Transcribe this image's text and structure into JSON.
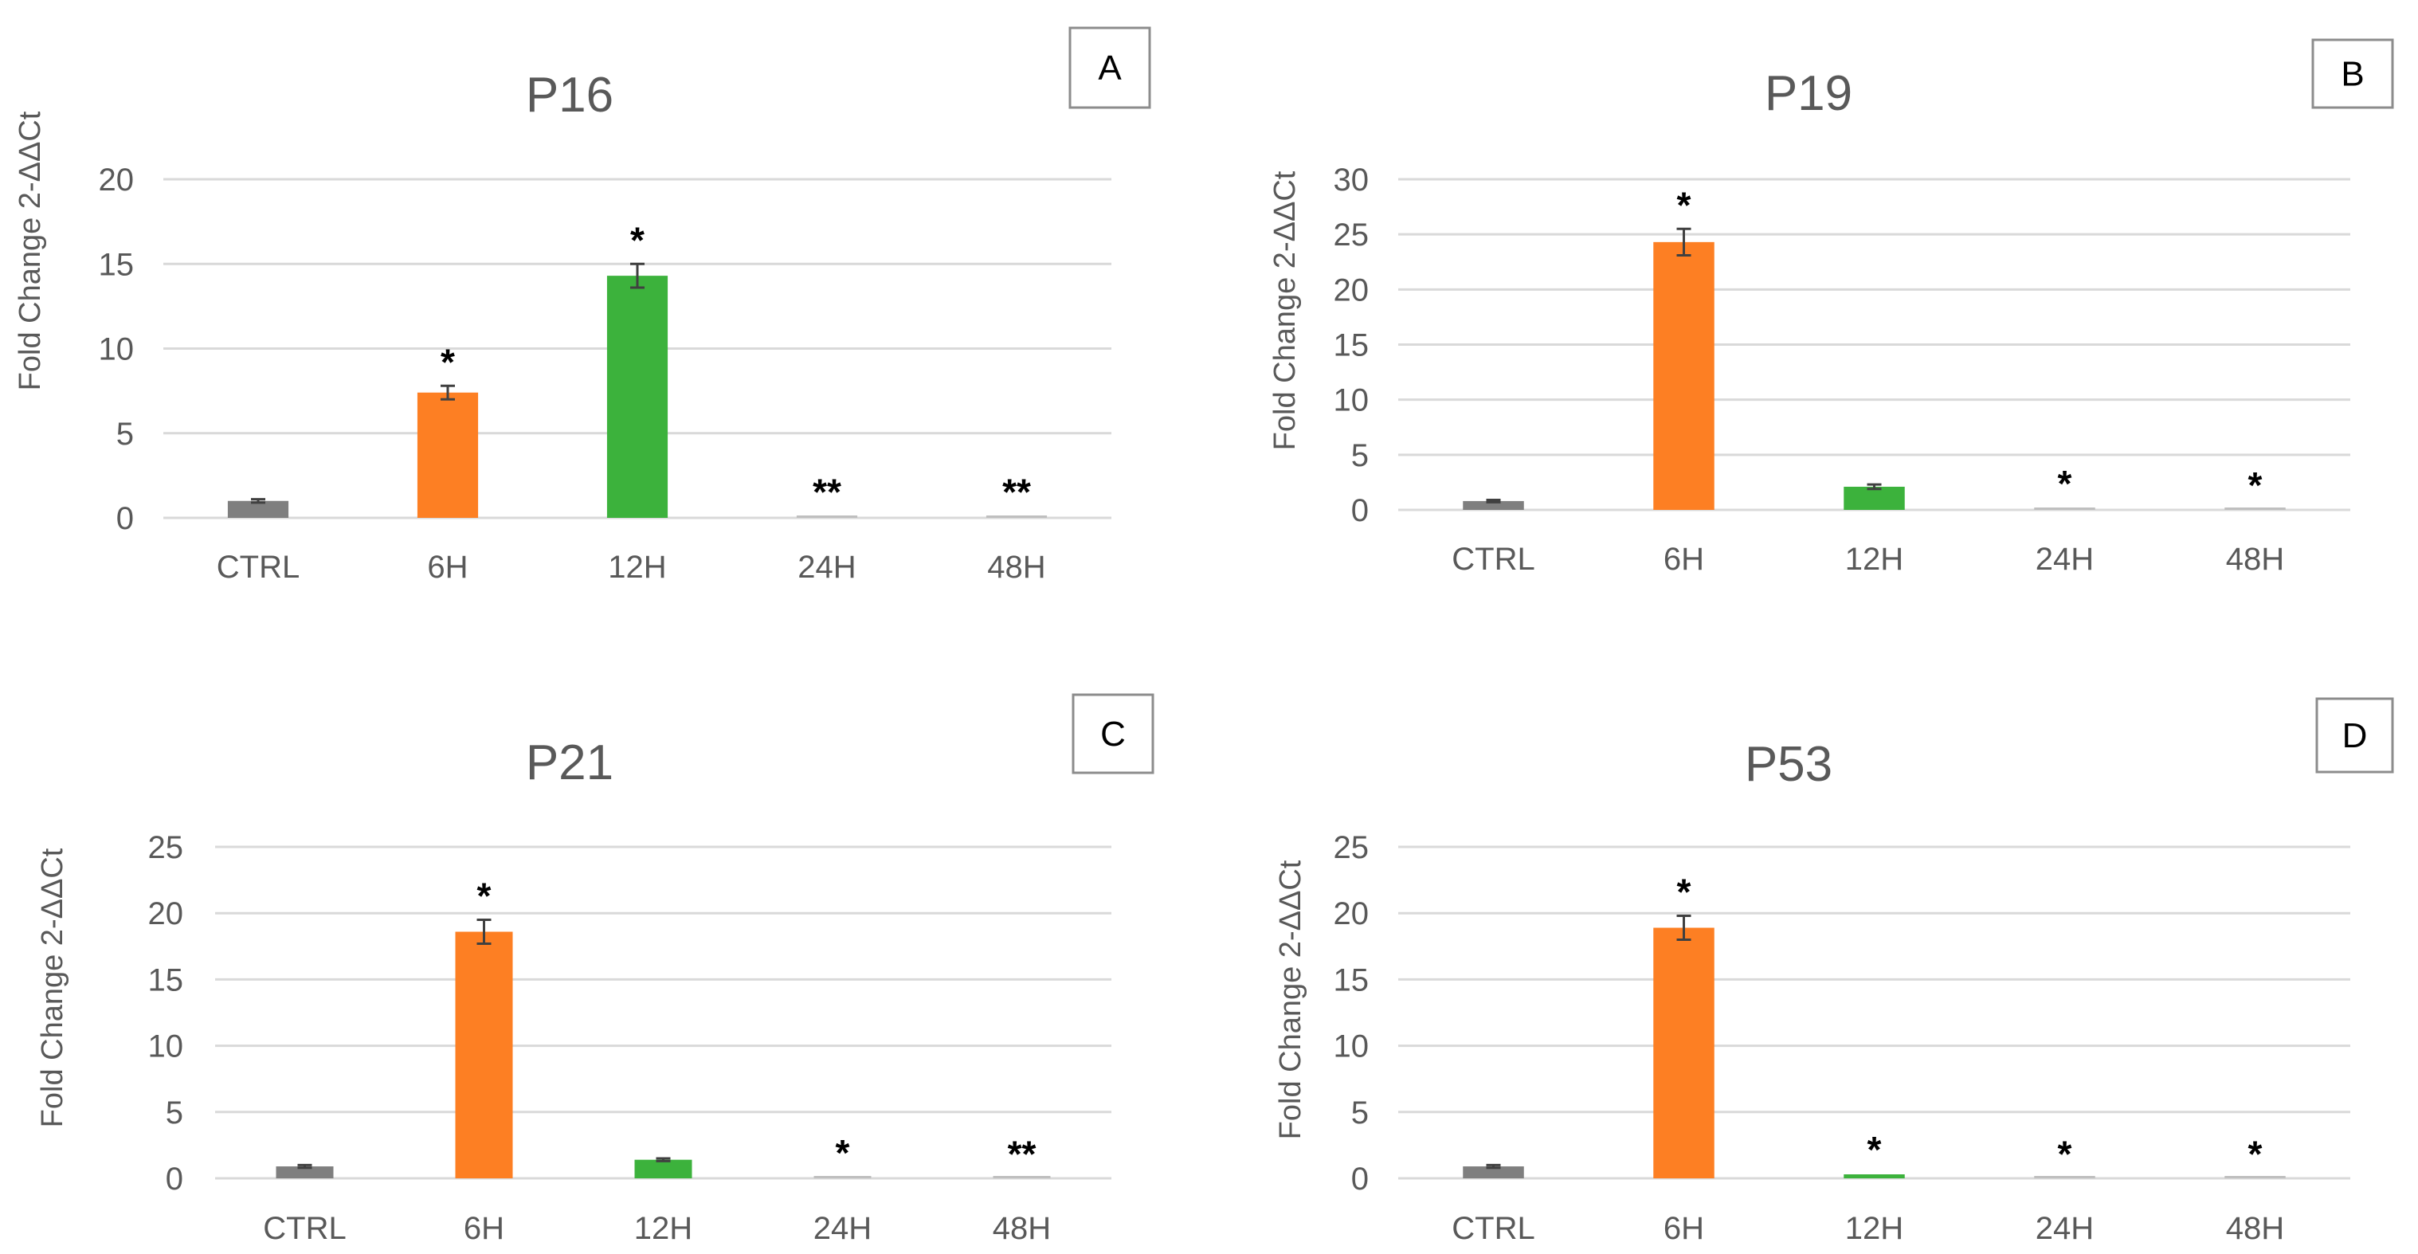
{
  "colors": {
    "ctrl": "#7f7f7f",
    "h6": "#fd7f23",
    "h12": "#3cb23c",
    "late": "#bfbfbf"
  },
  "chart_data": [
    {
      "type": "bar",
      "title": "P16",
      "panel_label": "A",
      "ylabel": "Fold Change 2-ΔΔCt",
      "xlabel": "",
      "categories": [
        "CTRL",
        "6H",
        "12H",
        "24H",
        "48H"
      ],
      "values": [
        1.0,
        7.4,
        14.3,
        0.1,
        0.1
      ],
      "errors": [
        0.1,
        0.4,
        0.7,
        0.02,
        0.02
      ],
      "significance": [
        "",
        "*",
        "*",
        "**",
        "**"
      ],
      "ylim": [
        0,
        20
      ],
      "yticks": [
        0,
        5,
        10,
        15,
        20
      ],
      "grid": true
    },
    {
      "type": "bar",
      "title": "P19",
      "panel_label": "B",
      "ylabel": "Fold Change 2-ΔΔCt",
      "xlabel": "",
      "categories": [
        "CTRL",
        "6H",
        "12H",
        "24H",
        "48H"
      ],
      "values": [
        0.8,
        24.3,
        2.1,
        0.2,
        0.05
      ],
      "errors": [
        0.1,
        1.2,
        0.2,
        0.02,
        0.01
      ],
      "significance": [
        "",
        "*",
        "",
        "*",
        "*"
      ],
      "ylim": [
        0,
        30
      ],
      "yticks": [
        0,
        5,
        10,
        15,
        20,
        25,
        30
      ],
      "grid": true
    },
    {
      "type": "bar",
      "title": "P21",
      "panel_label": "C",
      "ylabel": "Fold Change 2-ΔΔCt",
      "xlabel": "",
      "categories": [
        "CTRL",
        "6H",
        "12H",
        "24H",
        "48H"
      ],
      "values": [
        0.9,
        18.6,
        1.4,
        0.1,
        0.03
      ],
      "errors": [
        0.1,
        0.9,
        0.1,
        0.02,
        0.01
      ],
      "significance": [
        "",
        "*",
        "",
        "*",
        "**"
      ],
      "ylim": [
        0,
        25
      ],
      "yticks": [
        0,
        5,
        10,
        15,
        20,
        25
      ],
      "grid": true
    },
    {
      "type": "bar",
      "title": "P53",
      "panel_label": "D",
      "ylabel": "Fold Change 2-ΔΔCt",
      "xlabel": "",
      "categories": [
        "CTRL",
        "6H",
        "12H",
        "24H",
        "48H"
      ],
      "values": [
        0.9,
        18.9,
        0.3,
        0.03,
        0.03
      ],
      "errors": [
        0.1,
        0.9,
        0.05,
        0.01,
        0.01
      ],
      "significance": [
        "",
        "*",
        "*",
        "*",
        "*"
      ],
      "ylim": [
        0,
        25
      ],
      "yticks": [
        0,
        5,
        10,
        15,
        20,
        25
      ],
      "grid": true
    }
  ]
}
